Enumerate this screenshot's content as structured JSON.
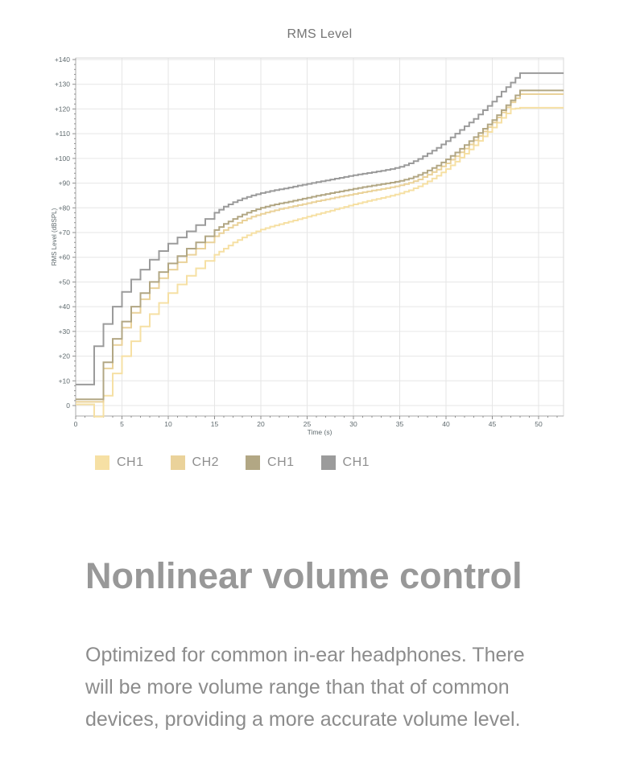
{
  "chart": {
    "title": "RMS Level",
    "xlabel": "Time (s)",
    "ylabel": "RMS Level (dBSPL)"
  },
  "chart_data": {
    "type": "line",
    "line_style": "step",
    "title": "RMS Level",
    "xlabel": "Time (s)",
    "ylabel": "RMS Level (dBSPL)",
    "xlim": [
      0,
      52.7
    ],
    "ylim": [
      -4.5,
      140.5
    ],
    "xticks": [
      0,
      5,
      10,
      15,
      20,
      25,
      30,
      35,
      40,
      45,
      50
    ],
    "yticks": [
      0,
      10,
      20,
      30,
      40,
      50,
      60,
      70,
      80,
      90,
      100,
      110,
      120,
      130,
      140
    ],
    "x_minor_step": 1,
    "y_minor_step": 2,
    "grid": true,
    "legend_position": "below-left",
    "x_step_seconds": 1,
    "series": [
      {
        "name": "CH1",
        "color": "#f6e0a4",
        "values": [
          0.5,
          0.5,
          -4.5,
          4,
          13,
          20,
          26,
          32,
          37,
          41.5,
          45.5,
          49,
          52.5,
          55.5,
          58.5,
          61,
          63.5,
          66,
          68,
          69.8,
          71.2,
          72.4,
          73.4,
          74.4,
          75.4,
          76.4,
          77.4,
          78.4,
          79.4,
          80.4,
          81.4,
          82.3,
          83.2,
          84,
          84.9,
          85.9,
          87.1,
          88.7,
          90.7,
          93,
          95.7,
          98.7,
          101.9,
          105.3,
          108.9,
          112.5,
          116.4,
          120,
          120.5,
          120.5,
          120.5,
          120.5,
          120.5,
          120.5
        ]
      },
      {
        "name": "CH2",
        "color": "#ead29a",
        "values": [
          1.5,
          1.5,
          1.5,
          15,
          24.5,
          31.5,
          37.5,
          43,
          47.5,
          51.5,
          55,
          58,
          61,
          63.5,
          66,
          68.5,
          71,
          73,
          74.9,
          76.4,
          77.6,
          78.6,
          79.5,
          80.3,
          81.1,
          81.9,
          82.7,
          83.4,
          84.2,
          84.9,
          85.6,
          86.3,
          87,
          87.6,
          88.3,
          89.1,
          90.1,
          91.5,
          93.4,
          95.5,
          98,
          100.9,
          104,
          107.3,
          110.9,
          114.5,
          118.6,
          122.7,
          126,
          126,
          126,
          126,
          126,
          126
        ]
      },
      {
        "name": "CH1",
        "color": "#b2a784",
        "values": [
          2.5,
          2.5,
          2.5,
          17.5,
          27,
          34,
          40,
          45.5,
          50,
          54,
          57.5,
          60.5,
          63.5,
          66,
          68.5,
          71,
          73.5,
          75.5,
          77.3,
          78.8,
          80,
          81,
          81.8,
          82.5,
          83.3,
          84.1,
          84.9,
          85.6,
          86.3,
          87,
          87.7,
          88.4,
          89,
          89.6,
          90.2,
          90.9,
          91.9,
          93.3,
          95.1,
          97.1,
          99.6,
          102.4,
          105.4,
          108.6,
          112,
          115.5,
          119.5,
          123.5,
          127.5,
          127.5,
          127.5,
          127.5,
          127.5,
          127.5
        ]
      },
      {
        "name": "CH1",
        "color": "#9b9b9b",
        "values": [
          8.5,
          8.5,
          24,
          33,
          40,
          46,
          51,
          55,
          59,
          62.5,
          65.5,
          68,
          70.5,
          73,
          75.5,
          78,
          80.5,
          82.3,
          83.8,
          85,
          86,
          86.8,
          87.5,
          88.2,
          89,
          89.7,
          90.4,
          91.1,
          91.8,
          92.5,
          93.2,
          93.8,
          94.4,
          95,
          95.7,
          96.6,
          98,
          99.8,
          102,
          104.3,
          107,
          110,
          113,
          116,
          119.5,
          123,
          127,
          130.7,
          134.5,
          134.5,
          134.5,
          134.5,
          134.5,
          134.5
        ]
      }
    ],
    "colors": {
      "grid": "#e6e6e6",
      "border": "#d9d9d9",
      "spine": "#a8a8a8",
      "tick": "#8f8f8f",
      "tick_label": "#5f6a6e",
      "axis_label": "#5f6a6e",
      "title": "#757575"
    }
  },
  "heading": {
    "text": "Nonlinear volume control"
  },
  "paragraph": {
    "lines": [
      "Optimized for common in-ear headphones. There",
      "will be more volume range than that of common",
      "devices, providing a more accurate volume level."
    ]
  }
}
